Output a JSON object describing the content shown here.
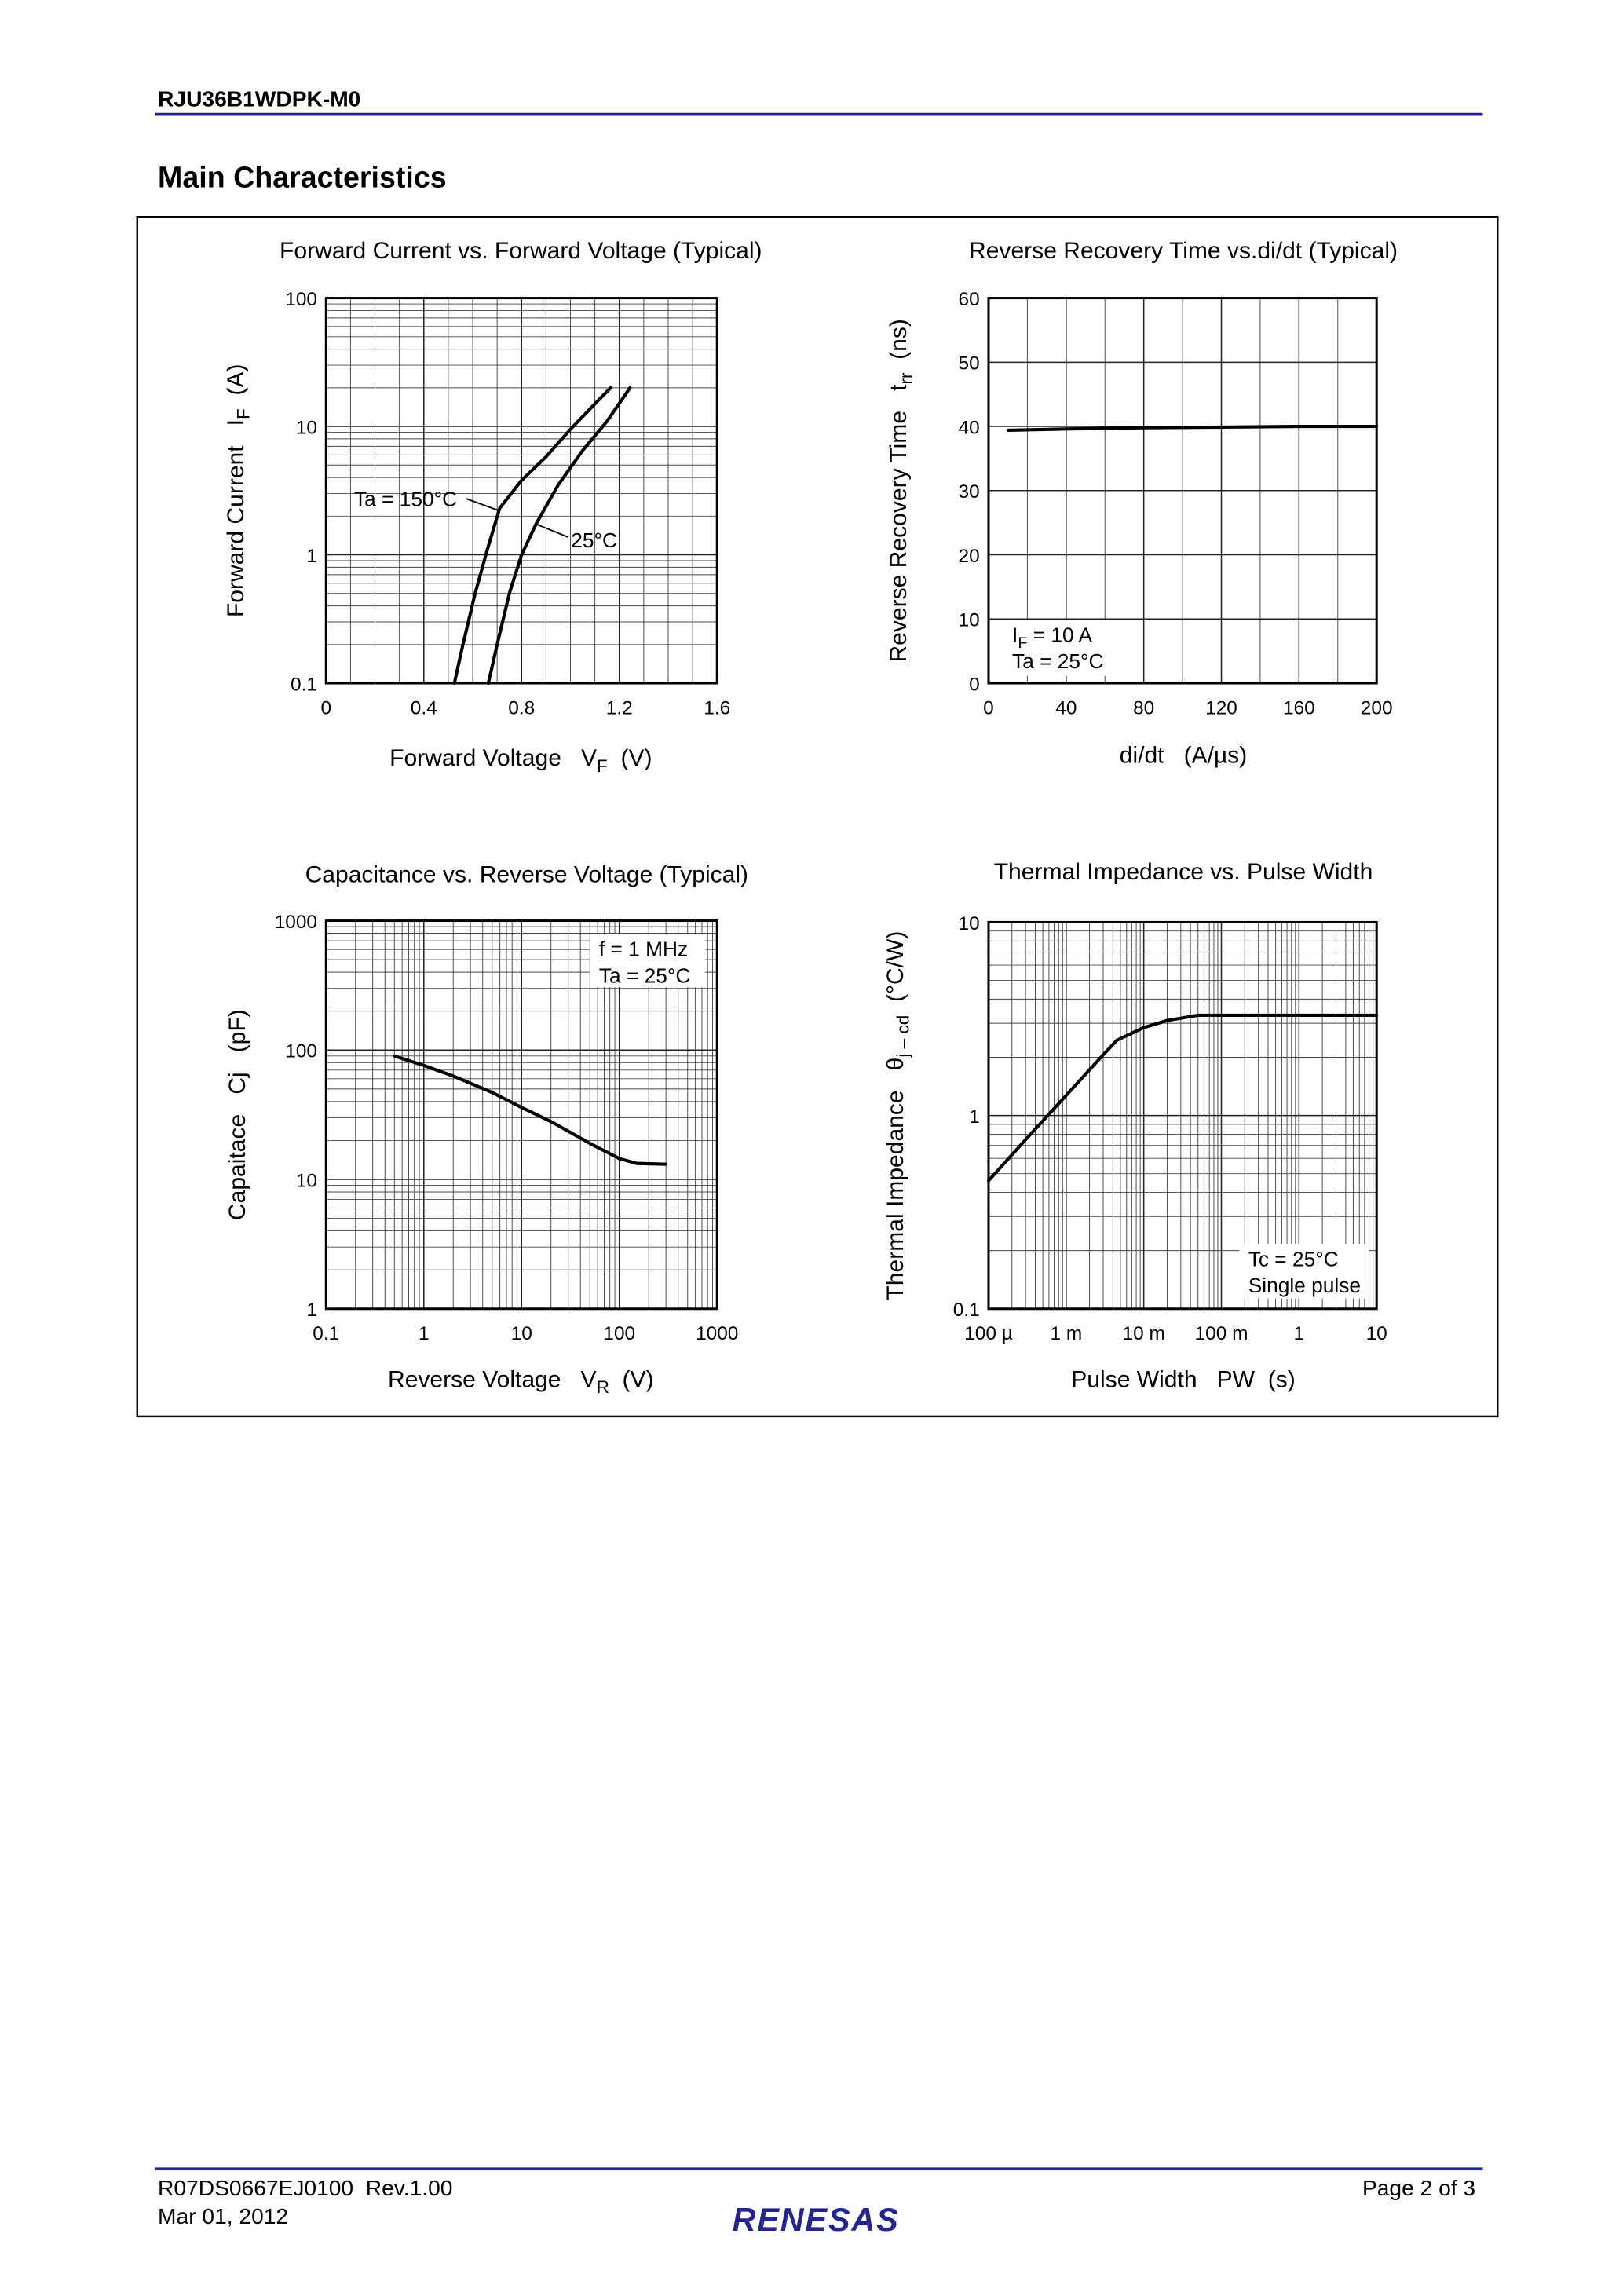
{
  "header": {
    "part": "RJU36B1WDPK-M0"
  },
  "title": "Main Characteristics",
  "chart_data": [
    {
      "type": "line",
      "title": "Forward Current vs. Forward Voltage (Typical)",
      "x_label": {
        "main": "Forward Voltage   V",
        "sub": "F",
        "tail": "  (V)"
      },
      "y_label": {
        "main": "Forward Current   I",
        "sub": "F",
        "tail": "  (A)"
      },
      "xlim": [
        0,
        1.6
      ],
      "xticks": [
        0,
        0.4,
        0.8,
        1.2,
        1.6
      ],
      "ylim": [
        0.1,
        100
      ],
      "yticks": [
        0.1,
        1,
        10,
        100
      ],
      "y_log": true,
      "grid": true,
      "series": [
        {
          "name": "Ta = 150°C",
          "color": "#000000",
          "x": [
            0.525,
            0.56,
            0.61,
            0.66,
            0.71,
            0.8,
            0.9,
            1.0,
            1.1,
            1.165
          ],
          "values": [
            0.1,
            0.2,
            0.5,
            1.1,
            2.3,
            3.8,
            5.8,
            9.5,
            15,
            20
          ]
        },
        {
          "name": "25°C",
          "color": "#000000",
          "x": [
            0.664,
            0.7,
            0.75,
            0.8,
            0.86,
            0.95,
            1.05,
            1.15,
            1.244
          ],
          "values": [
            0.1,
            0.2,
            0.5,
            1.0,
            1.75,
            3.5,
            6.5,
            11,
            20
          ]
        }
      ]
    },
    {
      "type": "line",
      "title": "Reverse Recovery Time vs.di/dt (Typical)",
      "x_label": "di/dt   (A/µs)",
      "y_label": {
        "main": "Reverse Recovery Time   t",
        "sub": "rr",
        "tail": "  (ns)"
      },
      "xlim": [
        0,
        200
      ],
      "xticks": [
        0,
        40,
        80,
        120,
        160,
        200
      ],
      "ylim": [
        0,
        60
      ],
      "yticks": [
        0,
        10,
        20,
        30,
        40,
        50,
        60
      ],
      "grid": true,
      "color": "#000000",
      "x": [
        10,
        40,
        80,
        120,
        160,
        200
      ],
      "values": [
        39.4,
        39.6,
        39.8,
        39.9,
        40,
        40
      ],
      "annotations": [
        {
          "main": "I",
          "sub": "F",
          "tail": " = 10 A"
        },
        "Ta = 25°C"
      ]
    },
    {
      "type": "line",
      "title": "Capacitance vs. Reverse Voltage (Typical)",
      "x_label": {
        "main": "Reverse Voltage   V",
        "sub": "R",
        "tail": "  (V)"
      },
      "y_label": "Capaitace   Cj   (pF)",
      "xlim": [
        0.1,
        1000
      ],
      "xticks": [
        0.1,
        1,
        10,
        100,
        1000
      ],
      "x_log": true,
      "ylim": [
        1,
        1000
      ],
      "yticks": [
        1,
        10,
        100,
        1000
      ],
      "y_log": true,
      "grid": true,
      "color": "#000000",
      "x": [
        0.5,
        1,
        2,
        5,
        10,
        20,
        50,
        100,
        150,
        300
      ],
      "values": [
        90,
        76,
        63,
        47,
        36,
        28,
        19,
        14.5,
        13.3,
        13.1
      ],
      "annotations": [
        "f = 1 MHz",
        "Ta = 25°C"
      ]
    },
    {
      "type": "line",
      "title": "Thermal Impedance vs. Pulse Width",
      "x_label": "Pulse Width   PW  (s)",
      "y_label": {
        "main": "Thermal Impedance   θ",
        "sub": "j – cd",
        "tail": "  (°C/W)"
      },
      "xlim": [
        0.0001,
        10
      ],
      "x_log": true,
      "xticks": [
        {
          "value": 0.0001,
          "label": "100 µ"
        },
        {
          "value": 0.001,
          "label": "1 m"
        },
        {
          "value": 0.01,
          "label": "10 m"
        },
        {
          "value": 0.1,
          "label": "100 m"
        },
        1,
        10
      ],
      "ylim": [
        0.1,
        10
      ],
      "yticks": [
        0.1,
        1,
        10
      ],
      "y_log": true,
      "grid": true,
      "color": "#000000",
      "x": [
        0.0001,
        0.0003,
        0.001,
        0.003,
        0.0045,
        0.01,
        0.02,
        0.05,
        0.1,
        1,
        10
      ],
      "values": [
        0.46,
        0.75,
        1.27,
        2.06,
        2.45,
        2.85,
        3.1,
        3.3,
        3.3,
        3.3,
        3.3
      ],
      "annotations": [
        "Tc = 25°C",
        "Single pulse"
      ]
    }
  ],
  "footer": {
    "doc": "R07DS0667EJ0100  Rev.1.00",
    "date": "Mar 01, 2012",
    "page": "Page 2 of 3",
    "logo": "RENESAS"
  }
}
